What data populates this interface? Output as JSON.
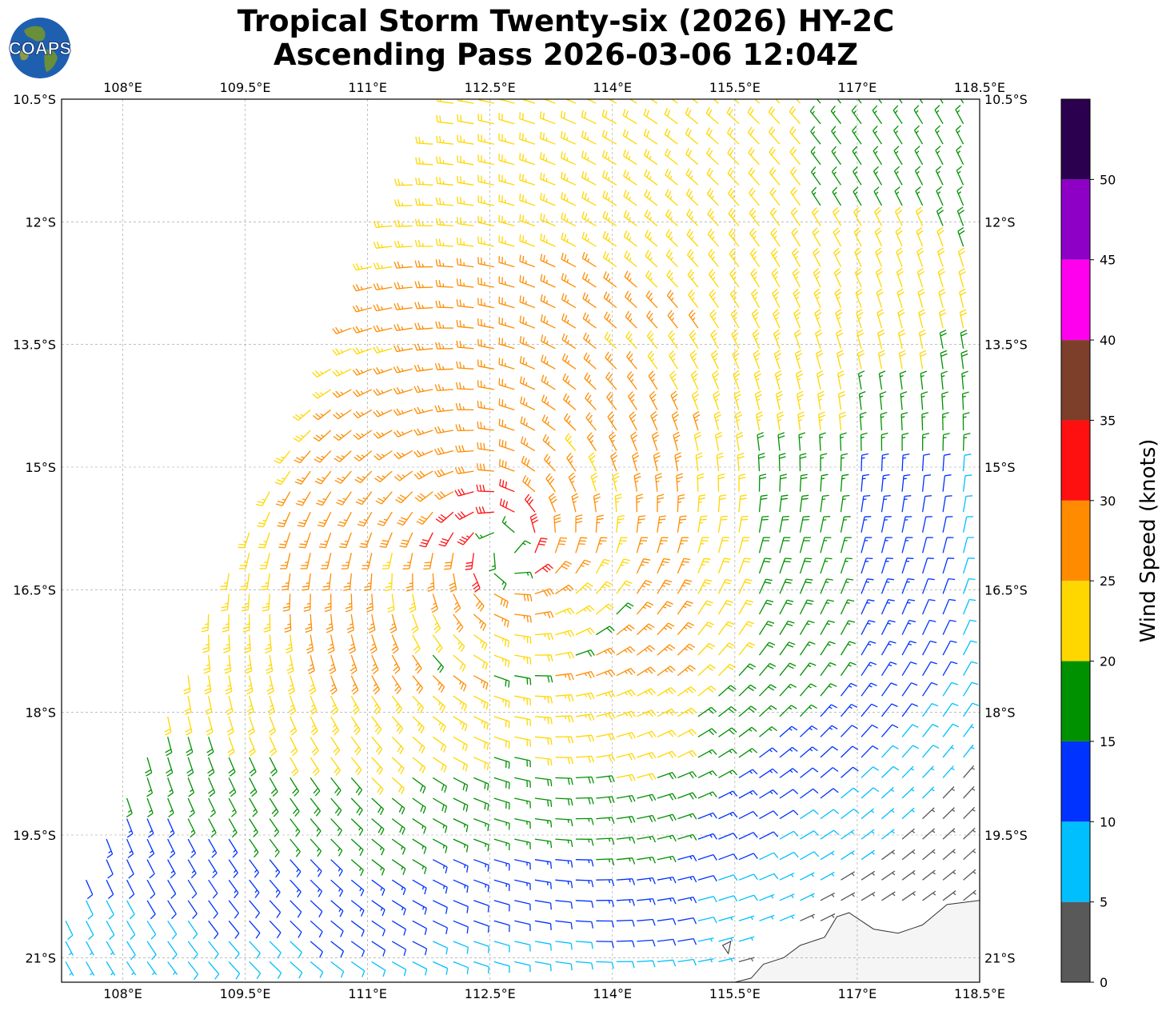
{
  "header": {
    "title_line1": "Tropical Storm Twenty-six (2026) HY-2C",
    "title_line2": "Ascending Pass 2026-03-06 12:04Z",
    "logo_text": "COAPS"
  },
  "map": {
    "lon_range": [
      107.25,
      118.5
    ],
    "lat_range": [
      -21.3,
      -10.5
    ],
    "lon_ticks": [
      108,
      109.5,
      111,
      112.5,
      114,
      115.5,
      117,
      118.5
    ],
    "lon_tick_labels": [
      "108°E",
      "109.5°E",
      "111°E",
      "112.5°E",
      "114°E",
      "115.5°E",
      "117°E",
      "118.5°E"
    ],
    "lat_ticks": [
      -10.5,
      -12,
      -13.5,
      -15,
      -16.5,
      -18,
      -19.5,
      -21
    ],
    "lat_tick_labels": [
      "10.5°S",
      "12°S",
      "13.5°S",
      "15°S",
      "16.5°S",
      "18°S",
      "19.5°S",
      "21°S"
    ],
    "grid": true,
    "storm_center": {
      "lon": 112.7,
      "lat": -16.0
    },
    "land": "Australia coastline, bottom-right"
  },
  "colorbar": {
    "label": "Wind Speed (knots)",
    "bounds": [
      0,
      5,
      10,
      15,
      20,
      25,
      30,
      35,
      40,
      45,
      50,
      55
    ],
    "tick_labels": [
      "0",
      "5",
      "10",
      "15",
      "20",
      "25",
      "30",
      "35",
      "40",
      "45",
      "50"
    ],
    "colors": [
      "#595959",
      "#00bfff",
      "#0033ff",
      "#009100",
      "#ffd700",
      "#ff8c00",
      "#ff1010",
      "#7d3f2a",
      "#ff00ee",
      "#8f00c7",
      "#2b004e"
    ]
  },
  "chart_data": {
    "type": "wind_barbs",
    "units": "knots",
    "swath": "HY-2C ascending pass, swath edge running from ~112.0°E 10.5°S to ~107.25°E 20.6°S",
    "circulation": "clockwise (Southern Hemisphere) around 112.7°E 16.0°S",
    "max_speed_knots": 33,
    "speed_regions": [
      {
        "area": "near center (within ~0.3°)",
        "speed_knots": 17
      },
      {
        "area": "ring 0.5-1.5° from center, north and west",
        "speed_knots": "25-33"
      },
      {
        "area": "north of storm, 11-14°S",
        "speed_knots": "21-29"
      },
      {
        "area": "east of storm, 115-118.5°E 14-20°S",
        "speed_knots": "11-19"
      },
      {
        "area": "south of storm, 19-21°S",
        "speed_knots": "6-14"
      },
      {
        "area": "northeast corner near 117°E 11°S",
        "speed_knots": "16-19"
      }
    ]
  }
}
